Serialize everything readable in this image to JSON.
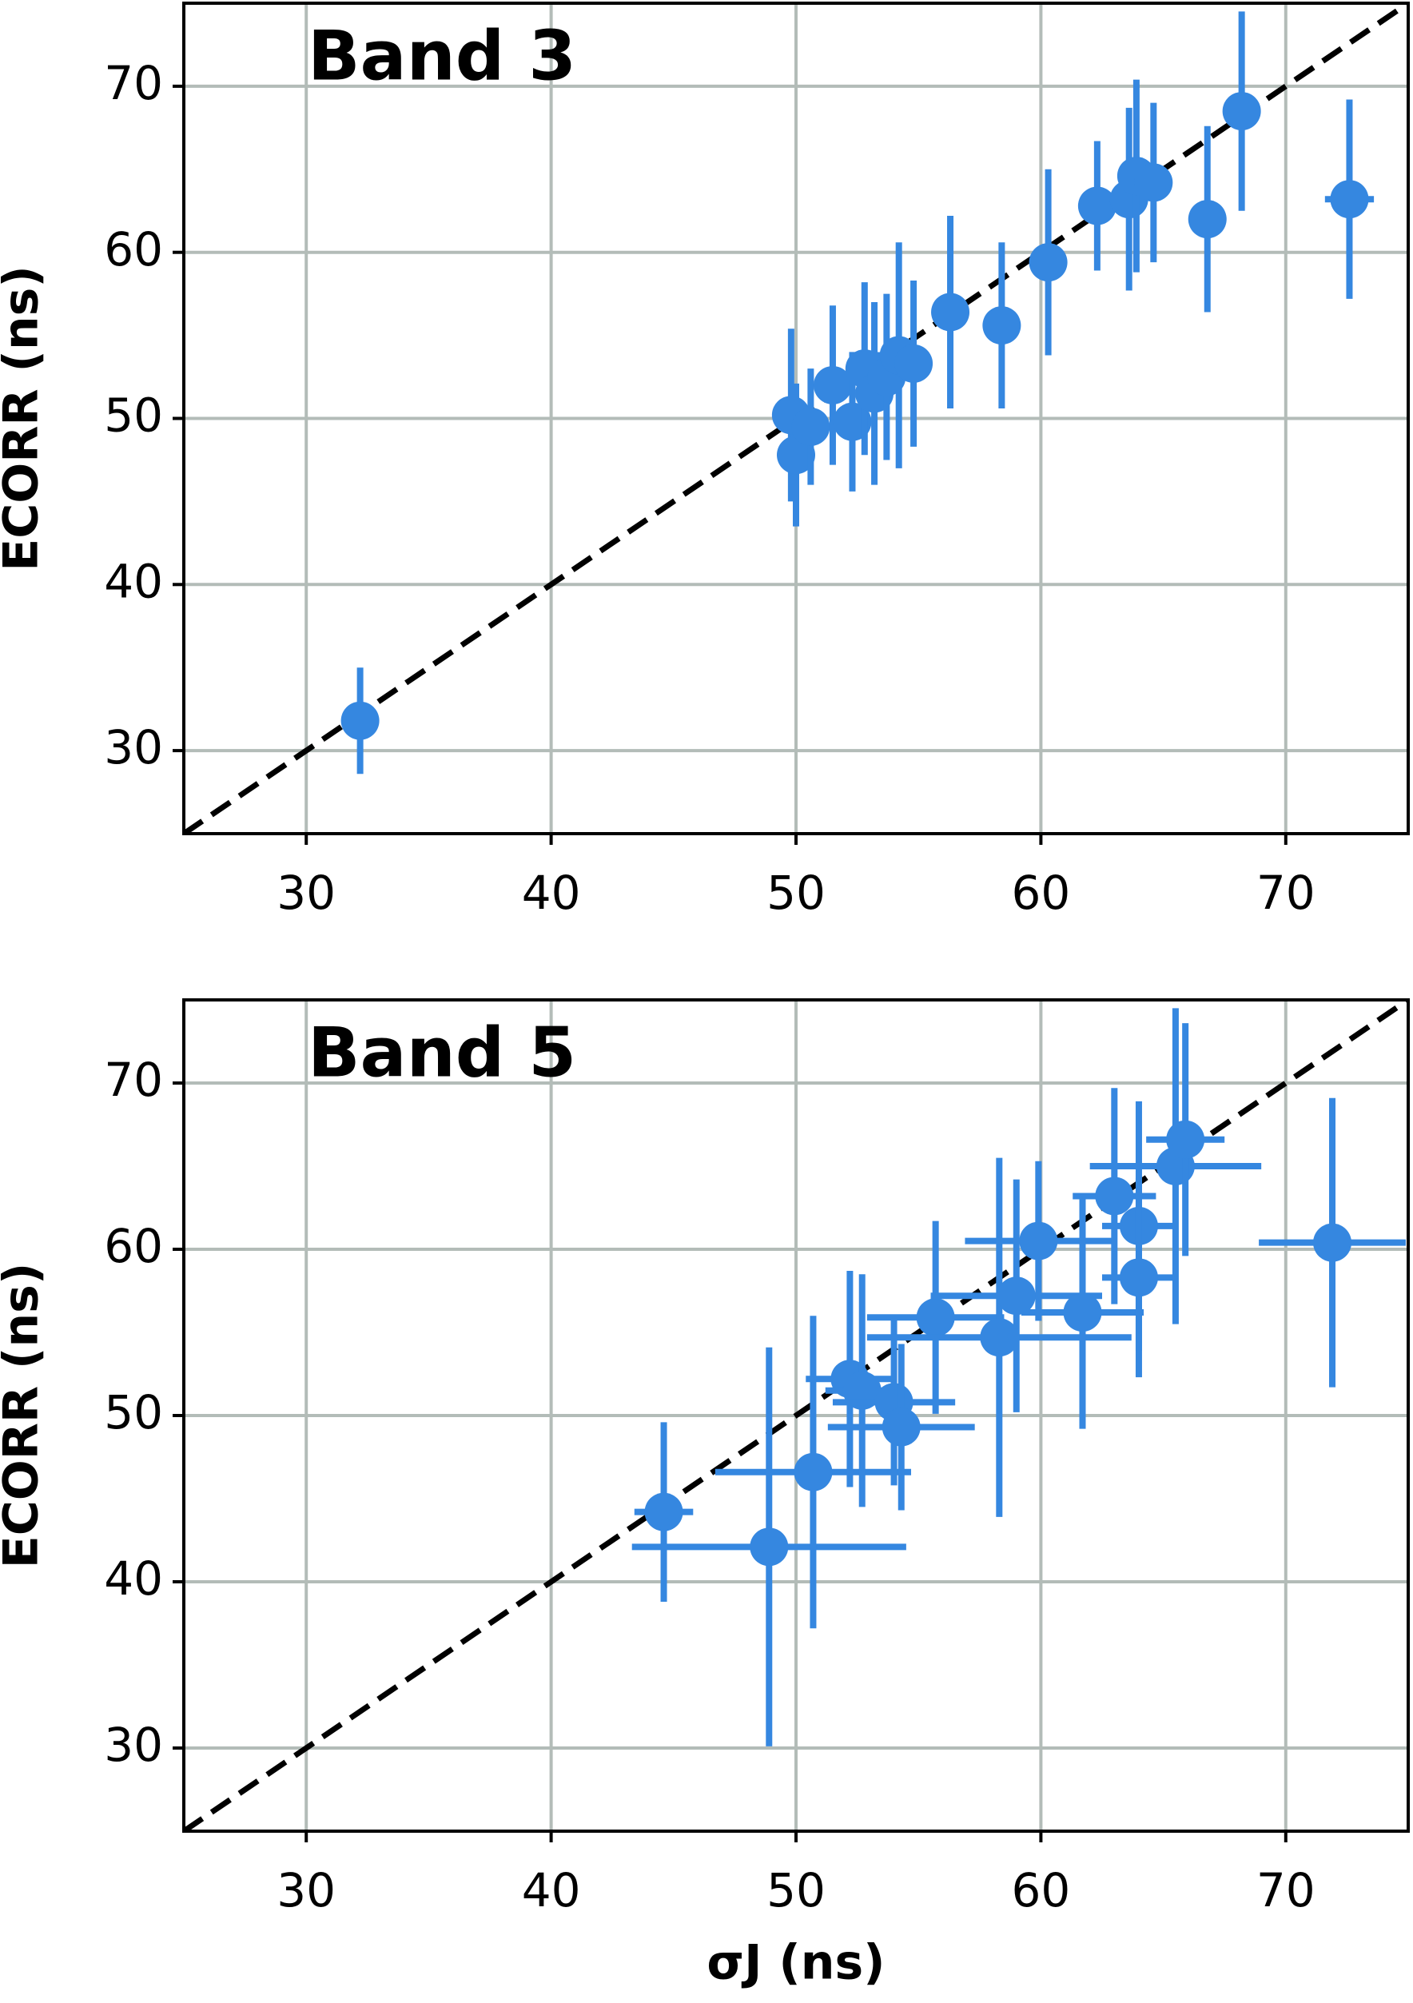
{
  "chart_data": [
    {
      "type": "scatter",
      "title": "Band 3",
      "ylabel": "ECORR (ns)",
      "color": "#3587e0",
      "grid": true,
      "xlim": [
        25,
        75
      ],
      "ylim": [
        25,
        75
      ],
      "xticks": [
        30,
        40,
        50,
        60,
        70
      ],
      "yticks": [
        30,
        40,
        50,
        60,
        70
      ],
      "x": [
        32.2,
        49.8,
        50.0,
        50.6,
        51.5,
        52.3,
        52.8,
        53.2,
        53.7,
        54.2,
        54.8,
        56.3,
        58.4,
        60.3,
        62.3,
        63.6,
        63.9,
        64.6,
        66.8,
        68.2,
        72.6
      ],
      "y": [
        31.8,
        50.2,
        47.8,
        49.5,
        52.0,
        49.8,
        53.0,
        51.5,
        52.5,
        53.8,
        53.3,
        56.4,
        55.6,
        59.4,
        62.8,
        63.2,
        64.6,
        64.2,
        62.0,
        68.5,
        63.2
      ],
      "xerr": [
        0.3,
        0.3,
        0.3,
        0.3,
        0.3,
        0.3,
        0.3,
        0.3,
        0.3,
        1.0,
        0.3,
        0.3,
        0.3,
        0.3,
        0.3,
        0.3,
        0.3,
        0.3,
        0.3,
        0.3,
        1.0
      ],
      "yerr": [
        3.2,
        5.2,
        4.3,
        3.5,
        4.8,
        4.2,
        5.2,
        5.5,
        5.0,
        6.8,
        5.0,
        5.8,
        5.0,
        5.6,
        3.9,
        5.5,
        5.8,
        4.8,
        5.6,
        6.0,
        6.0
      ]
    },
    {
      "type": "scatter",
      "title": "Band 5",
      "ylabel": "ECORR (ns)",
      "xlabel": "σJ (ns)",
      "color": "#3587e0",
      "grid": true,
      "xlim": [
        25,
        75
      ],
      "ylim": [
        25,
        75
      ],
      "xticks": [
        30,
        40,
        50,
        60,
        70
      ],
      "yticks": [
        30,
        40,
        50,
        60,
        70
      ],
      "x": [
        44.6,
        48.9,
        50.7,
        52.2,
        52.7,
        54.0,
        54.3,
        55.7,
        58.3,
        59.0,
        59.9,
        61.7,
        63.0,
        64.0,
        64.0,
        65.5,
        65.9,
        71.9
      ],
      "y": [
        44.2,
        42.1,
        46.6,
        52.2,
        51.5,
        50.8,
        49.3,
        55.9,
        54.7,
        57.2,
        60.5,
        56.2,
        63.2,
        61.4,
        58.3,
        65.0,
        66.6,
        60.4
      ],
      "xerr": [
        1.2,
        5.6,
        4.0,
        1.8,
        1.5,
        2.5,
        3.0,
        2.8,
        5.4,
        3.5,
        3.0,
        2.5,
        1.7,
        1.5,
        1.5,
        3.5,
        1.6,
        3.0
      ],
      "yerr": [
        5.4,
        12.0,
        9.4,
        6.5,
        7.0,
        5.0,
        5.0,
        5.8,
        10.8,
        7.0,
        4.8,
        7.0,
        6.5,
        7.5,
        6.0,
        9.5,
        7.0,
        8.7
      ]
    }
  ]
}
